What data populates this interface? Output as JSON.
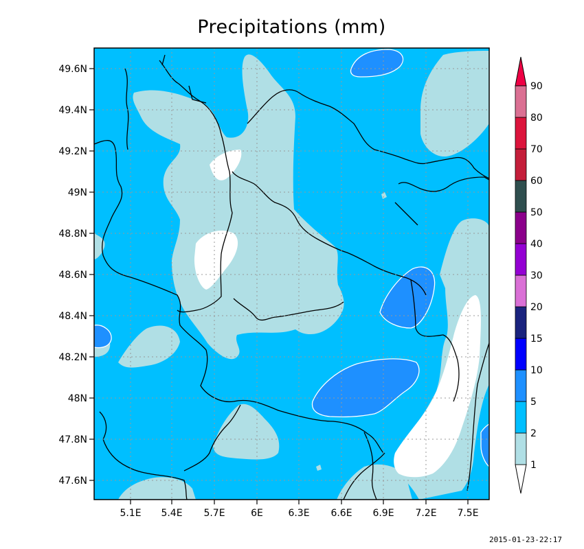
{
  "title": "Precipitations (mm)",
  "timestamp": "2015-01-23-22:17",
  "lat_ticks": [
    "49.6N",
    "49.4N",
    "49.2N",
    "49N",
    "48.8N",
    "48.6N",
    "48.4N",
    "48.2N",
    "48N",
    "47.8N",
    "47.6N"
  ],
  "lon_ticks": [
    "5.1E",
    "5.4E",
    "5.7E",
    "6E",
    "6.3E",
    "6.6E",
    "6.9E",
    "7.2E",
    "7.5E"
  ],
  "colorbar": {
    "levels": [
      "1",
      "2",
      "5",
      "10",
      "15",
      "20",
      "30",
      "40",
      "50",
      "60",
      "70",
      "80",
      "90"
    ],
    "colors": [
      "#ffffff",
      "#b0dfe5",
      "#00bfff",
      "#1e90ff",
      "#0000ff",
      "#1a237e",
      "#da70d6",
      "#9400d3",
      "#8b008b",
      "#2f4f4f",
      "#c41e3a",
      "#dc143c",
      "#db7093",
      "#ee0044"
    ]
  },
  "palette": {
    "band_1_2": "#b0dfe5",
    "band_2_5": "#00bfff",
    "band_5_10": "#1e90ff",
    "band_lt_1": "#ffffff"
  }
}
